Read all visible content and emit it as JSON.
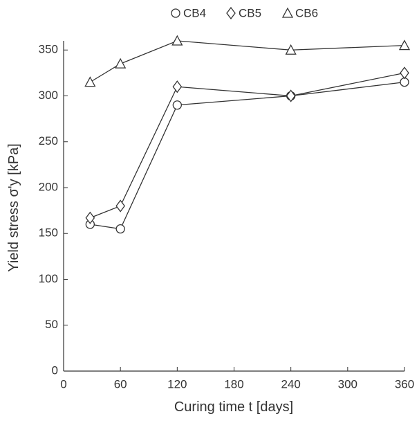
{
  "chart_data": {
    "type": "line",
    "x_label": "Curing time t [days]",
    "y_label": "Yield stress σ'y [kPa]",
    "x": [
      28,
      60,
      120,
      240,
      360
    ],
    "series": [
      {
        "name": "CB4",
        "color": "#333333",
        "marker": "circle",
        "values": [
          160,
          155,
          290,
          300,
          315
        ]
      },
      {
        "name": "CB5",
        "color": "#333333",
        "marker": "diamond",
        "values": [
          167,
          180,
          310,
          300,
          325
        ]
      },
      {
        "name": "CB6",
        "color": "#333333",
        "marker": "triangle",
        "values": [
          315,
          335,
          360,
          350,
          355
        ]
      }
    ],
    "xlim": [
      0,
      360
    ],
    "xticks": [
      0,
      60,
      120,
      180,
      240,
      300,
      360
    ],
    "ylim": [
      0,
      360
    ],
    "yticks": [
      0,
      50,
      100,
      150,
      200,
      250,
      300,
      350
    ],
    "grid": false,
    "legend": "top"
  }
}
